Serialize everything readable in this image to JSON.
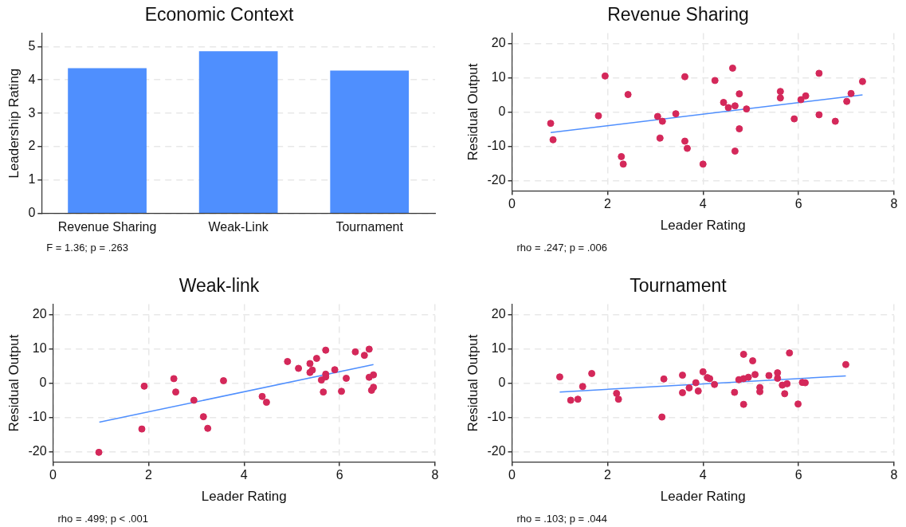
{
  "chart_data": [
    {
      "type": "bar",
      "title": "Economic Context",
      "ylabel": "Leadership Rating",
      "categories": [
        "Revenue Sharing",
        "Weak-Link",
        "Tournament"
      ],
      "values": [
        4.35,
        4.86,
        4.28
      ],
      "color": "#4f8ffe",
      "ylim": [
        0,
        5.4
      ],
      "yticks": [
        0,
        1,
        2,
        3,
        4,
        5
      ],
      "grid": "y",
      "annotations": [
        "F = 1.36; p = .263"
      ]
    },
    {
      "type": "scatter",
      "title": "Revenue Sharing",
      "xlabel": "Leader Rating",
      "ylabel": "Residual Output",
      "xlim": [
        0,
        8
      ],
      "xticks": [
        0,
        2,
        4,
        6,
        8
      ],
      "ylim": [
        -23,
        23
      ],
      "yticks": [
        -20,
        -10,
        0,
        10,
        20
      ],
      "grid": true,
      "annotations": [
        "rho = .247; p = .006"
      ],
      "series": [
        {
          "type": "scatter",
          "marker": "circle",
          "color": "#d4285a",
          "x": [
            0.81,
            0.86,
            1.81,
            1.95,
            2.43,
            2.29,
            2.33,
            3.05,
            3.15,
            3.1,
            3.43,
            3.62,
            3.62,
            3.67,
            4.0,
            4.25,
            4.43,
            4.53,
            4.62,
            4.67,
            4.76,
            4.76,
            4.67,
            4.91,
            5.62,
            5.62,
            5.91,
            6.05,
            6.15,
            6.43,
            6.43,
            6.77,
            7.01,
            7.1,
            7.34
          ],
          "values": [
            -3.3,
            -8.1,
            -1.1,
            10.5,
            5.1,
            -13.0,
            -15.2,
            -1.3,
            -2.7,
            -7.6,
            -0.5,
            10.3,
            -8.5,
            -10.6,
            -15.2,
            9.2,
            2.8,
            1.3,
            12.8,
            1.8,
            5.3,
            -4.9,
            -11.4,
            0.9,
            6.0,
            4.1,
            -2.0,
            3.6,
            4.7,
            11.3,
            -0.8,
            -2.7,
            3.1,
            5.4,
            8.9
          ]
        },
        {
          "type": "line",
          "marker": "none",
          "color": "#4f8ffe",
          "x": [
            0.81,
            7.34
          ],
          "values": [
            -6.0,
            5.0
          ]
        }
      ]
    },
    {
      "type": "scatter",
      "title": "Weak-link",
      "xlabel": "Leader Rating",
      "ylabel": "Residual Output",
      "xlim": [
        0,
        8
      ],
      "xticks": [
        0,
        2,
        4,
        6,
        8
      ],
      "ylim": [
        -23,
        23
      ],
      "yticks": [
        -20,
        -10,
        0,
        10,
        20
      ],
      "grid": true,
      "annotations": [
        "rho = .499; p < .001"
      ],
      "series": [
        {
          "type": "scatter",
          "marker": "circle",
          "color": "#d4285a",
          "x": [
            0.96,
            1.86,
            1.91,
            2.53,
            2.57,
            2.95,
            3.15,
            3.24,
            3.57,
            4.38,
            4.47,
            4.91,
            5.14,
            5.38,
            5.38,
            5.43,
            5.52,
            5.71,
            5.62,
            5.71,
            5.71,
            5.66,
            5.9,
            6.04,
            6.14,
            6.33,
            6.52,
            6.62,
            6.62,
            6.71,
            6.67,
            6.71
          ],
          "values": [
            -20.2,
            -13.4,
            -0.9,
            1.3,
            -2.6,
            -5.0,
            -9.8,
            -13.2,
            0.7,
            -3.9,
            -5.6,
            6.3,
            4.3,
            5.7,
            3.1,
            3.8,
            7.2,
            9.6,
            0.9,
            2.6,
            1.8,
            -2.6,
            3.9,
            -2.4,
            1.4,
            9.1,
            8.1,
            9.9,
            1.7,
            2.4,
            -2.1,
            -1.2
          ]
        },
        {
          "type": "line",
          "marker": "none",
          "color": "#4f8ffe",
          "x": [
            0.97,
            6.71
          ],
          "values": [
            -11.4,
            5.4
          ]
        }
      ]
    },
    {
      "type": "scatter",
      "title": "Tournament",
      "xlabel": "Leader Rating",
      "ylabel": "Residual Output",
      "xlim": [
        0,
        8
      ],
      "xticks": [
        0,
        2,
        4,
        6,
        8
      ],
      "ylim": [
        -23,
        23
      ],
      "yticks": [
        -20,
        -10,
        0,
        10,
        20
      ],
      "grid": true,
      "annotations": [
        "rho = .103; p = .044"
      ],
      "series": [
        {
          "type": "scatter",
          "marker": "circle",
          "color": "#d4285a",
          "x": [
            1.0,
            1.23,
            1.38,
            1.48,
            1.67,
            2.19,
            2.23,
            3.14,
            3.18,
            3.57,
            3.57,
            3.71,
            3.85,
            3.9,
            4.0,
            4.09,
            4.14,
            4.24,
            4.66,
            4.75,
            4.85,
            4.95,
            4.85,
            4.85,
            5.04,
            5.09,
            5.19,
            5.19,
            5.38,
            5.56,
            5.56,
            5.66,
            5.76,
            5.71,
            5.81,
            5.99,
            6.08,
            6.14,
            6.99
          ],
          "values": [
            1.8,
            -5.0,
            -4.7,
            -1.0,
            2.8,
            -3.0,
            -4.7,
            -9.9,
            1.2,
            2.3,
            -2.8,
            -1.4,
            0.1,
            -2.3,
            3.3,
            1.6,
            1.3,
            -0.4,
            -2.7,
            1.0,
            1.3,
            1.7,
            8.4,
            -6.2,
            6.5,
            2.5,
            -1.3,
            -2.5,
            2.2,
            3.0,
            1.4,
            -0.6,
            -0.2,
            -3.1,
            8.8,
            -6.1,
            0.2,
            0.1,
            5.4
          ]
        },
        {
          "type": "line",
          "marker": "none",
          "color": "#4f8ffe",
          "x": [
            1.0,
            6.99
          ],
          "values": [
            -2.6,
            2.1
          ]
        }
      ]
    }
  ]
}
